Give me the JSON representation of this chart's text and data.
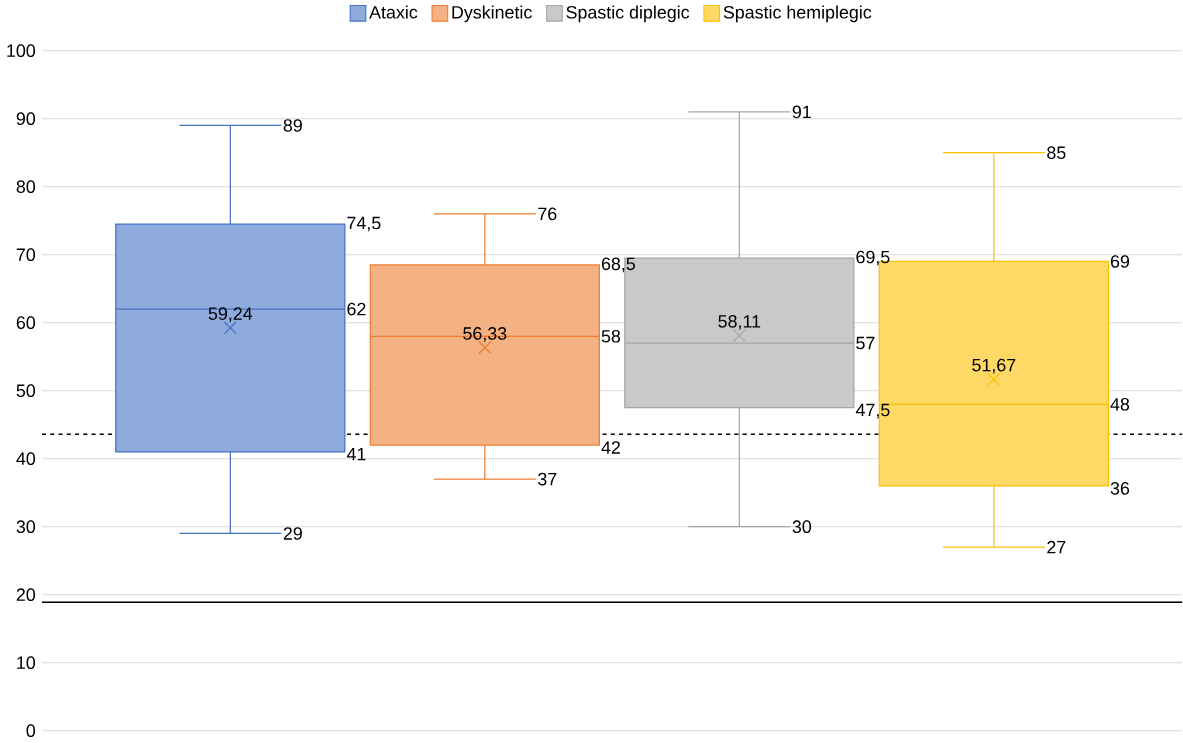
{
  "chart_data": {
    "type": "box",
    "categories": [
      null
    ],
    "series": [
      {
        "name": "Ataxic",
        "color": "#4472c4",
        "boxes": [
          {
            "low": 29,
            "q1": 41,
            "median": 62,
            "q3": 74.5,
            "high": 89,
            "mean": 59.24
          }
        ]
      },
      {
        "name": "Dyskinetic",
        "color": "#ed7d31",
        "boxes": [
          {
            "low": 37,
            "q1": 42,
            "median": 58,
            "q3": 68.5,
            "high": 76,
            "mean": 56.33
          }
        ]
      },
      {
        "name": "Spastic diplegic",
        "color": "#a5a5a5",
        "boxes": [
          {
            "low": 30,
            "q1": 47.5,
            "median": 57,
            "q3": 69.5,
            "high": 91,
            "mean": 58.11
          }
        ]
      },
      {
        "name": "Spastic hemiplegic",
        "color": "#ffc000",
        "boxes": [
          {
            "low": 27,
            "q1": 36,
            "median": 48,
            "q3": 69,
            "high": 85,
            "mean": 51.67
          }
        ]
      }
    ],
    "annotations": [
      "29",
      "41",
      "62",
      "74,5",
      "89",
      "59,24",
      "37",
      "42",
      "58",
      "68,5",
      "76",
      "56,33",
      "30",
      "47,5",
      "57",
      "69,5",
      "91",
      "58,11",
      "27",
      "36",
      "48",
      "69",
      "85",
      "51,67"
    ],
    "ylim": [
      0,
      100
    ],
    "yticks": [
      0,
      10,
      20,
      30,
      40,
      50,
      60,
      70,
      80,
      90,
      100
    ],
    "ref_lines": [
      {
        "axis": "y",
        "value": 43.6,
        "color": "#000000",
        "line_style": "dashed"
      },
      {
        "axis": "y",
        "value": 18.9,
        "color": "#000000",
        "line_style": "solid"
      }
    ],
    "grid": "y",
    "legend": "top",
    "marker": "cross"
  }
}
